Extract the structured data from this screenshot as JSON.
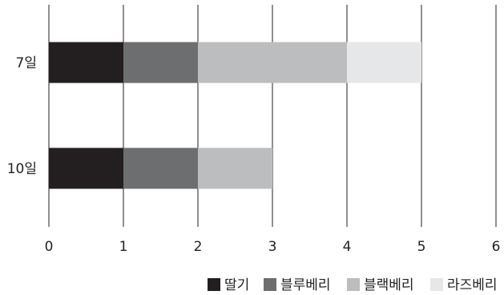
{
  "chart_data": {
    "type": "bar",
    "orientation": "horizontal",
    "stacked": true,
    "categories": [
      "7일",
      "10일"
    ],
    "series": [
      {
        "name": "딸기",
        "values": [
          1,
          1
        ],
        "color": "#231f20"
      },
      {
        "name": "블루베리",
        "values": [
          1,
          1
        ],
        "color": "#6d6e70"
      },
      {
        "name": "블랙베리",
        "values": [
          2,
          1
        ],
        "color": "#bcbdbf"
      },
      {
        "name": "라즈베리",
        "values": [
          1,
          0
        ],
        "color": "#e6e7e8"
      }
    ],
    "x_ticks": [
      "0",
      "1",
      "2",
      "3",
      "4",
      "5",
      "6"
    ],
    "xlim": [
      0,
      6
    ],
    "grid": "vertical",
    "legend": "bottom-right"
  }
}
